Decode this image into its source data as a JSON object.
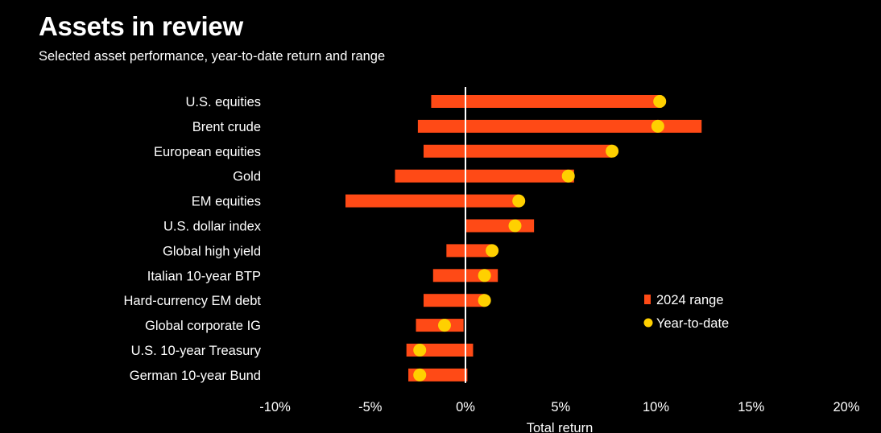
{
  "title": "Assets in review",
  "subtitle": "Selected asset performance, year-to-date return and range",
  "colors": {
    "range": "#ff4a16",
    "ytd": "#ffd000",
    "zero_line": "#ffffff",
    "background": "#000000"
  },
  "legend": {
    "range_label": "2024 range",
    "ytd_label": "Year-to-date",
    "placement": "right"
  },
  "chart_data": {
    "type": "range-dot",
    "xlabel": "Total return",
    "xlim": [
      -10,
      20
    ],
    "xticks": [
      -10,
      -5,
      0,
      5,
      10,
      15,
      20
    ],
    "xtick_labels": [
      "-10%",
      "-5%",
      "0%",
      "5%",
      "10%",
      "15%",
      "20%"
    ],
    "categories": [
      "U.S. equities",
      "Brent crude",
      "European equities",
      "Gold",
      "EM equities",
      "U.S. dollar index",
      "Global high yield",
      "Italian 10-year BTP",
      "Hard-currency EM debt",
      "Global corporate IG",
      "U.S. 10-year Treasury",
      "German 10-year Bund"
    ],
    "series": [
      {
        "name": "2024 range",
        "min": [
          -1.8,
          -2.5,
          -2.2,
          -3.7,
          -6.3,
          0.0,
          -1.0,
          -1.7,
          -2.2,
          -2.6,
          -3.1,
          -3.0
        ],
        "max": [
          10.3,
          12.4,
          7.7,
          5.7,
          2.8,
          3.6,
          1.4,
          1.7,
          1.0,
          -0.1,
          0.4,
          0.1
        ]
      },
      {
        "name": "Year-to-date",
        "values": [
          10.2,
          10.1,
          7.7,
          5.4,
          2.8,
          2.6,
          1.4,
          1.0,
          1.0,
          -1.1,
          -2.4,
          -2.4
        ]
      }
    ]
  }
}
